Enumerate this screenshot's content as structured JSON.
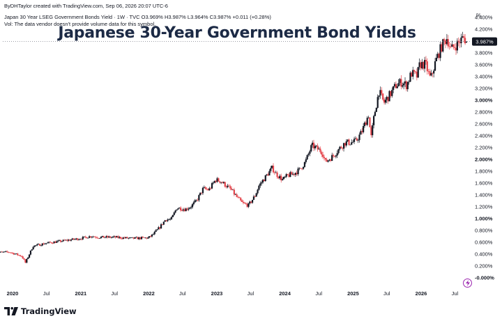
{
  "header": {
    "credit": "ByDHTaylor created with TradingView.com, Sep 06, 2026 20:07 UTC-6",
    "symbol_line": "Japan 30 Year LSEG Government Bonds Yield · 1W · TVC  O3.969%  H3.987%  L3.964%  C3.987%  +0.011 (+0.28%)",
    "volume_note": "Vol: The data vendor doesn't provide volume data for this symbol."
  },
  "footer": {
    "brand": "TradingView"
  },
  "chart_data": {
    "type": "candlestick",
    "title": "Japanese 30-Year Government Bond Yields",
    "unit": "%",
    "ylim": [
      -0.05,
      4.45
    ],
    "y_ticks": [
      "4.400%",
      "4.200%",
      "4.000%",
      "3.800%",
      "3.600%",
      "3.400%",
      "3.200%",
      "3.000%",
      "2.800%",
      "2.600%",
      "2.400%",
      "2.200%",
      "2.000%",
      "1.800%",
      "1.600%",
      "1.400%",
      "1.200%",
      "1.000%",
      "0.800%",
      "0.600%",
      "0.400%",
      "0.200%",
      "-0.000%"
    ],
    "y_tick_values": [
      4.4,
      4.2,
      4.0,
      3.8,
      3.6,
      3.4,
      3.2,
      3.0,
      2.8,
      2.6,
      2.4,
      2.2,
      2.0,
      1.8,
      1.6,
      1.4,
      1.2,
      1.0,
      0.8,
      0.6,
      0.4,
      0.2,
      0.0
    ],
    "bold_ticks": [
      "3.000%",
      "2.000%",
      "1.000%",
      "-0.000%"
    ],
    "x_ticks": [
      {
        "label": "2020",
        "date": "2020-01-01",
        "bold": true
      },
      {
        "label": "Jul",
        "date": "2020-07-01",
        "bold": false
      },
      {
        "label": "2021",
        "date": "2021-01-01",
        "bold": true
      },
      {
        "label": "Jul",
        "date": "2021-07-01",
        "bold": false
      },
      {
        "label": "2022",
        "date": "2022-01-01",
        "bold": true
      },
      {
        "label": "Jul",
        "date": "2022-07-01",
        "bold": false
      },
      {
        "label": "2023",
        "date": "2023-01-01",
        "bold": true
      },
      {
        "label": "Jul",
        "date": "2023-07-01",
        "bold": false
      },
      {
        "label": "2024",
        "date": "2024-01-01",
        "bold": true
      },
      {
        "label": "Jul",
        "date": "2024-07-01",
        "bold": false
      },
      {
        "label": "2025",
        "date": "2025-01-01",
        "bold": true
      },
      {
        "label": "Jul",
        "date": "2025-07-01",
        "bold": false
      },
      {
        "label": "2026",
        "date": "2026-01-01",
        "bold": true
      },
      {
        "label": "Jul",
        "date": "2026-07-01",
        "bold": false
      }
    ],
    "last_price": 3.987,
    "last_label": "3.987%",
    "colors": {
      "up": "#131722",
      "down": "#e5454c",
      "last_line": "#787b86",
      "axis_text": "#131722"
    },
    "close_path": [
      [
        "2019-10-01",
        0.42
      ],
      [
        "2019-12-15",
        0.43
      ],
      [
        "2020-02-20",
        0.36
      ],
      [
        "2020-03-10",
        0.25
      ],
      [
        "2020-04-20",
        0.53
      ],
      [
        "2020-07-01",
        0.58
      ],
      [
        "2020-10-01",
        0.62
      ],
      [
        "2021-01-01",
        0.66
      ],
      [
        "2021-03-01",
        0.7
      ],
      [
        "2021-04-01",
        0.68
      ],
      [
        "2021-07-01",
        0.68
      ],
      [
        "2021-10-01",
        0.66
      ],
      [
        "2021-12-31",
        0.67
      ],
      [
        "2022-01-25",
        0.73
      ],
      [
        "2022-03-01",
        0.85
      ],
      [
        "2022-04-01",
        0.98
      ],
      [
        "2022-05-01",
        0.98
      ],
      [
        "2022-06-01",
        1.18
      ],
      [
        "2022-07-15",
        1.15
      ],
      [
        "2022-08-15",
        1.2
      ],
      [
        "2022-09-15",
        1.3
      ],
      [
        "2022-10-20",
        1.5
      ],
      [
        "2022-11-20",
        1.48
      ],
      [
        "2022-12-25",
        1.65
      ],
      [
        "2023-01-20",
        1.63
      ],
      [
        "2023-03-20",
        1.48
      ],
      [
        "2023-04-20",
        1.35
      ],
      [
        "2023-05-20",
        1.25
      ],
      [
        "2023-06-20",
        1.22
      ],
      [
        "2023-07-25",
        1.38
      ],
      [
        "2023-08-15",
        1.55
      ],
      [
        "2023-09-15",
        1.68
      ],
      [
        "2023-10-25",
        1.85
      ],
      [
        "2023-11-15",
        1.75
      ],
      [
        "2023-12-20",
        1.65
      ],
      [
        "2024-01-15",
        1.72
      ],
      [
        "2024-02-15",
        1.75
      ],
      [
        "2024-03-20",
        1.82
      ],
      [
        "2024-04-20",
        1.95
      ],
      [
        "2024-05-25",
        2.23
      ],
      [
        "2024-06-20",
        2.18
      ],
      [
        "2024-07-20",
        2.12
      ],
      [
        "2024-08-05",
        1.95
      ],
      [
        "2024-09-15",
        2.05
      ],
      [
        "2024-10-20",
        2.18
      ],
      [
        "2024-11-20",
        2.28
      ],
      [
        "2024-12-20",
        2.28
      ],
      [
        "2025-01-15",
        2.3
      ],
      [
        "2025-02-15",
        2.45
      ],
      [
        "2025-03-25",
        2.75
      ],
      [
        "2025-04-07",
        2.35
      ],
      [
        "2025-04-25",
        2.75
      ],
      [
        "2025-05-20",
        3.15
      ],
      [
        "2025-06-15",
        2.95
      ],
      [
        "2025-07-20",
        3.1
      ],
      [
        "2025-08-20",
        3.25
      ],
      [
        "2025-09-15",
        3.3
      ],
      [
        "2025-10-15",
        3.25
      ],
      [
        "2025-11-10",
        3.45
      ],
      [
        "2025-12-10",
        3.4
      ],
      [
        "2025-12-25",
        3.6
      ],
      [
        "2026-01-25",
        3.6
      ],
      [
        "2026-02-20",
        3.35
      ],
      [
        "2026-03-20",
        3.65
      ],
      [
        "2026-04-20",
        3.9
      ],
      [
        "2026-05-20",
        4.05
      ],
      [
        "2026-06-10",
        3.85
      ],
      [
        "2026-07-15",
        3.95
      ],
      [
        "2026-08-15",
        4.05
      ],
      [
        "2026-09-06",
        3.987
      ]
    ]
  }
}
